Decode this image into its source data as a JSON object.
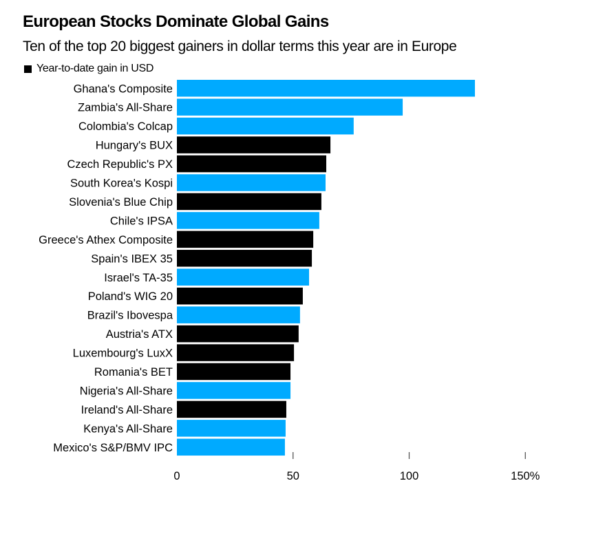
{
  "chart_data": {
    "type": "bar",
    "orientation": "horizontal",
    "title": "European Stocks Dominate Global Gains",
    "subtitle": "Ten of the top 20 biggest gainers in dollar terms this year are in Europe",
    "legend": [
      {
        "label": "Year-to-date gain in USD",
        "color": "#000000"
      }
    ],
    "legend_position": "top-left",
    "xlabel": "",
    "ylabel": "",
    "xlim": [
      0,
      150
    ],
    "xticks": [
      0,
      50,
      100,
      150
    ],
    "xtick_labels": [
      "0",
      "50",
      "100",
      "150%"
    ],
    "grid": false,
    "colors": {
      "europe": "#000000",
      "other": "#00aaff"
    },
    "categories": [
      "Ghana's Composite",
      "Zambia's All-Share",
      "Colombia's Colcap",
      "Hungary's BUX",
      "Czech Republic's PX",
      "South Korea's Kospi",
      "Slovenia's Blue Chip",
      "Chile's IPSA",
      "Greece's Athex Composite",
      "Spain's IBEX 35",
      "Israel's TA-35",
      "Poland's WIG 20",
      "Brazil's Ibovespa",
      "Austria's ATX",
      "Luxembourg's LuxX",
      "Romania's BET",
      "Nigeria's All-Share",
      "Ireland's All-Share",
      "Kenya's All-Share",
      "Mexico's S&P/BMV IPC"
    ],
    "values": [
      128.3,
      97.2,
      76.1,
      66.1,
      64.3,
      64.0,
      62.2,
      61.3,
      58.7,
      58.1,
      56.9,
      54.2,
      53.0,
      52.4,
      50.4,
      48.9,
      48.9,
      47.1,
      46.8,
      46.5
    ],
    "is_europe": [
      false,
      false,
      false,
      true,
      true,
      false,
      true,
      false,
      true,
      true,
      false,
      true,
      false,
      true,
      true,
      true,
      false,
      true,
      false,
      false
    ]
  }
}
